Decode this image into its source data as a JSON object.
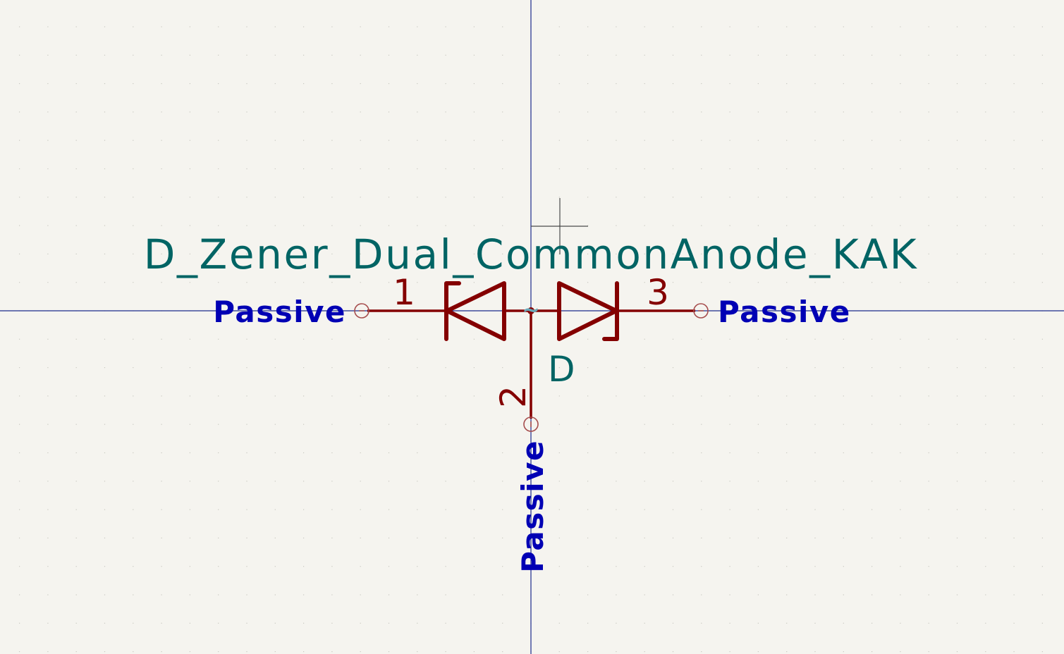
{
  "symbol": {
    "value": "D_Zener_Dual_CommonAnode_KAK",
    "reference": "D",
    "center_marker": "~"
  },
  "pins": [
    {
      "number": "1",
      "electrical_type": "Passive"
    },
    {
      "number": "2",
      "electrical_type": "Passive"
    },
    {
      "number": "3",
      "electrical_type": "Passive"
    }
  ],
  "colors": {
    "background": "#f5f4ef",
    "grid_dot": "#c9c9c1",
    "axis": "#1c2a8c",
    "body": "#840000",
    "pin": "#840000",
    "pin_end": "#a64d4d",
    "field_text": "#006464",
    "pin_type_text": "#0000b4",
    "tilde": "#6aa8b8",
    "cursor": "#4a4a4a"
  }
}
